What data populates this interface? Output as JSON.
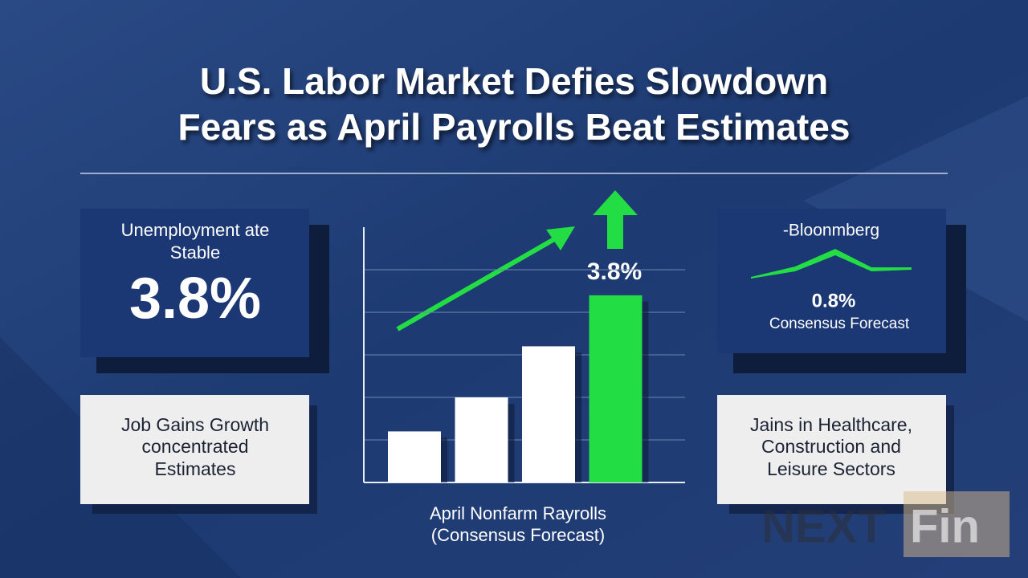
{
  "header": {
    "title": [
      "U.S. Labor Market Defies Slowdown",
      "Fears as April Payrolls Beat Estimates"
    ]
  },
  "cards": {
    "top_left": {
      "lines": [
        "Unemployment ate",
        "Stable"
      ],
      "value": "3.8%"
    },
    "bottom_left": {
      "lines": [
        "Job Gains Growth",
        "concentrated",
        "Estimates"
      ]
    },
    "top_right": {
      "source": "-Bloonmberg",
      "value": "0.8%",
      "caption": "Consensus Forecast"
    },
    "bottom_right": {
      "lines": [
        "Jains in Healthcare,",
        "Construction and",
        "Leisure Sectors"
      ]
    }
  },
  "chart_data": {
    "type": "bar",
    "categories": [
      null,
      null,
      null,
      null
    ],
    "values": [
      1.2,
      2.0,
      3.2,
      4.4
    ],
    "colors": [
      "#ffffff",
      "#ffffff",
      "#ffffff",
      "#22dd44"
    ],
    "ylim": [
      0,
      6
    ],
    "yticks": [
      1,
      2,
      3,
      4,
      5
    ],
    "grid": true,
    "annotation": "3.8%",
    "caption": [
      "April Nonfarm Rayrolls",
      "(Consensus Forecast)"
    ]
  },
  "watermark": [
    "NEXT",
    "Fin"
  ]
}
